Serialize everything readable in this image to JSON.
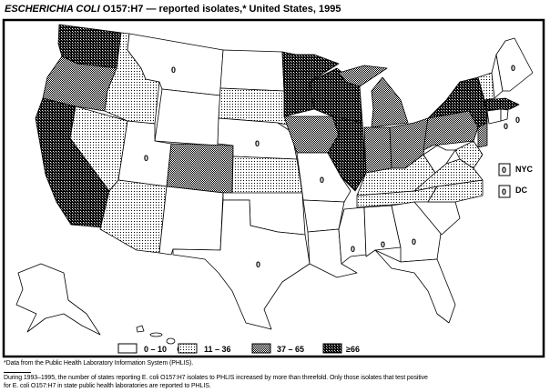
{
  "title": {
    "organism": "ESCHERICHIA COLI",
    "rest": "O157:H7 — reported isolates,* United States, 1995"
  },
  "legend": [
    {
      "label": "0 – 10",
      "pattern": "none"
    },
    {
      "label": "11 – 36",
      "pattern": "light-dots"
    },
    {
      "label": "37 – 65",
      "pattern": "medium-stipple"
    },
    {
      "label": "≥66",
      "pattern": "dark-crosshatch"
    }
  ],
  "states": {
    "WA": "≥66",
    "OR": "37 – 65",
    "CA": "≥66",
    "ID": "11 – 36",
    "NV": "11 – 36",
    "MT": "0 – 10",
    "WY": "0 – 10",
    "UT": "0 – 10",
    "CO": "37 – 65",
    "AZ": "11 – 36",
    "NM": "0 – 10",
    "ND": "0 – 10",
    "SD": "11 – 36",
    "NE": "0 – 10",
    "KS": "11 – 36",
    "OK": "0 – 10",
    "TX": "0 – 10",
    "MN": "≥66",
    "IA": "37 – 65",
    "MO": "0 – 10",
    "AR": "0 – 10",
    "LA": "0 – 10",
    "WI": "≥66",
    "IL": "≥66",
    "MI": "37 – 65",
    "IN": "37 – 65",
    "OH": "37 – 65",
    "KY": "11 – 36",
    "TN": "11 – 36",
    "MS": "0 – 10",
    "AL": "0 – 10",
    "GA": "0 – 10",
    "FL": "0 – 10",
    "SC": "0 – 10",
    "NC": "11 – 36",
    "VA": "11 – 36",
    "WV": "0 – 10",
    "PA": "37 – 65",
    "NY": "≥66",
    "NJ": "37 – 65",
    "MD": "11 – 36",
    "VT": "11 – 36",
    "NH": "0 – 10",
    "ME": "0 – 10",
    "MA": "≥66",
    "CT": "0 – 10",
    "RI": "0 – 10",
    "AK": "0 – 10",
    "HI": "0 – 10"
  },
  "zero_labels": {
    "MT": "0",
    "UT": "0",
    "NE": "0",
    "MO": "0",
    "TX": "0",
    "MS": "0",
    "AL": "0",
    "GA": "0",
    "ME": "0",
    "CT": "0",
    "RI": "0"
  },
  "insets": [
    {
      "name": "NYC",
      "value": "0"
    },
    {
      "name": "DC",
      "value": "0"
    }
  ],
  "footnotes": {
    "source": "*Data from the Public Health Laboratory Information System (PHLIS).",
    "note_line1": "During 1993–1995, the number of states reporting E. coli O157:H7 isolates to PHLIS increased by more than threefold. Only those isolates that test positive",
    "note_line2": "for E. coli O157:H7 in state public health laboratories are reported to PHLIS."
  }
}
